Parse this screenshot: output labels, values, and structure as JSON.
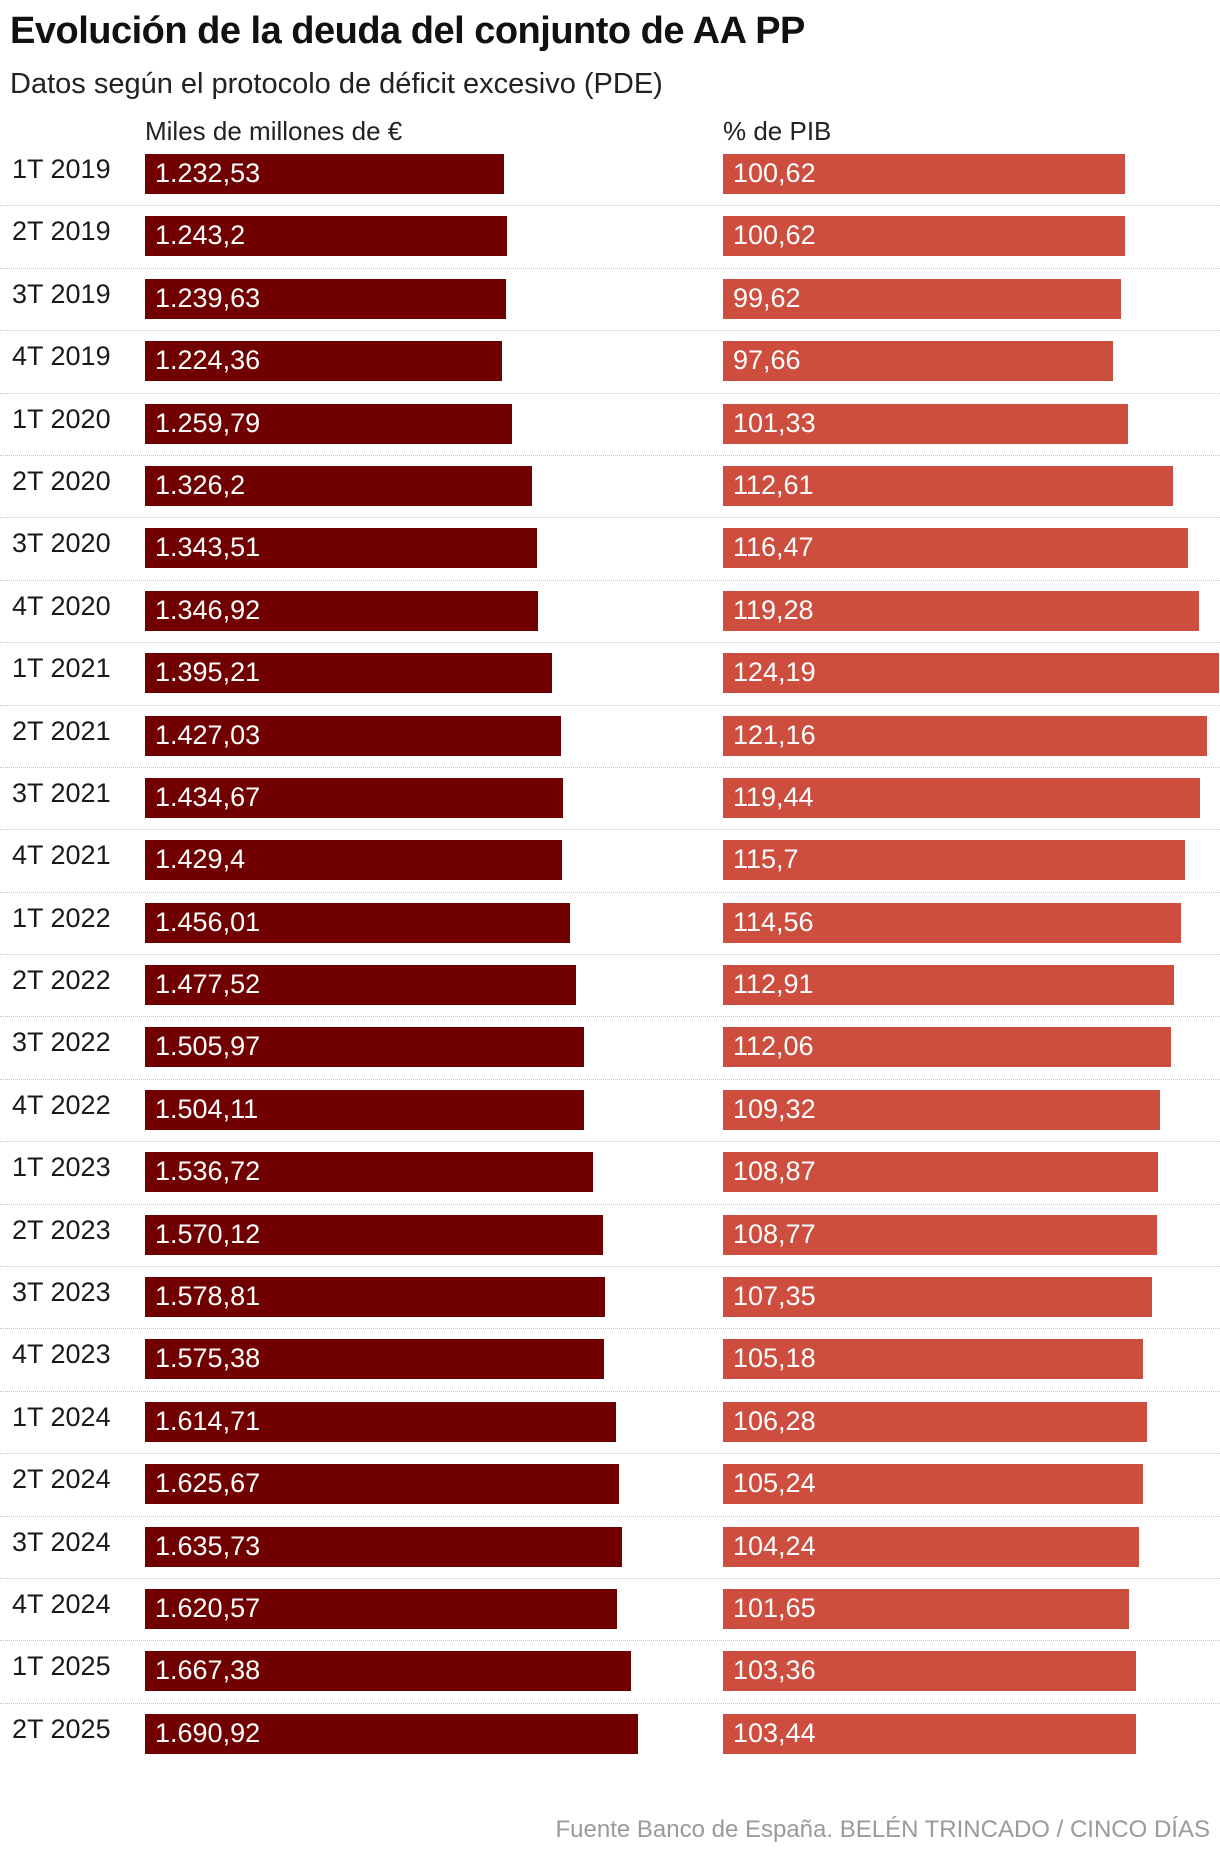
{
  "chart_data": {
    "type": "bar",
    "orientation": "horizontal",
    "title": "Evolución de la deuda del conjunto de AA PP",
    "subtitle": "Datos según el protocolo de déficit excesivo (PDE)",
    "categories": [
      "1T 2019",
      "2T 2019",
      "3T 2019",
      "4T 2019",
      "1T 2020",
      "2T 2020",
      "3T 2020",
      "4T 2020",
      "1T 2021",
      "2T 2021",
      "3T 2021",
      "4T 2021",
      "1T 2022",
      "2T 2022",
      "3T 2022",
      "4T 2022",
      "1T 2023",
      "2T 2023",
      "3T 2023",
      "4T 2023",
      "1T 2024",
      "2T 2024",
      "3T 2024",
      "4T 2024",
      "1T 2025",
      "2T 2025"
    ],
    "series": [
      {
        "name": "Miles de millones de €",
        "color": "#710000",
        "values": [
          1232.53,
          1243.2,
          1239.63,
          1224.36,
          1259.79,
          1326.2,
          1343.51,
          1346.92,
          1395.21,
          1427.03,
          1434.67,
          1429.4,
          1456.01,
          1477.52,
          1505.97,
          1504.11,
          1536.72,
          1570.12,
          1578.81,
          1575.38,
          1614.71,
          1625.67,
          1635.73,
          1620.57,
          1667.38,
          1690.92
        ],
        "labels": [
          "1.232,53",
          "1.243,2",
          "1.239,63",
          "1.224,36",
          "1.259,79",
          "1.326,2",
          "1.343,51",
          "1.346,92",
          "1.395,21",
          "1.427,03",
          "1.434,67",
          "1.429,4",
          "1.456,01",
          "1.477,52",
          "1.505,97",
          "1.504,11",
          "1.536,72",
          "1.570,12",
          "1.578,81",
          "1.575,38",
          "1.614,71",
          "1.625,67",
          "1.635,73",
          "1.620,57",
          "1.667,38",
          "1.690,92"
        ]
      },
      {
        "name": "% de PIB",
        "color": "#cd4e3e",
        "values": [
          100.62,
          100.62,
          99.62,
          97.66,
          101.33,
          112.61,
          116.47,
          119.28,
          124.19,
          121.16,
          119.44,
          115.7,
          114.56,
          112.91,
          112.06,
          109.32,
          108.87,
          108.77,
          107.35,
          105.18,
          106.28,
          105.24,
          104.24,
          101.65,
          103.36,
          103.44
        ],
        "labels": [
          "100,62",
          "100,62",
          "99,62",
          "97,66",
          "101,33",
          "112,61",
          "116,47",
          "119,28",
          "124,19",
          "121,16",
          "119,44",
          "115,7",
          "114,56",
          "112,91",
          "112,06",
          "109,32",
          "108,87",
          "108,77",
          "107,35",
          "105,18",
          "106,28",
          "105,24",
          "104,24",
          "101,65",
          "103,36",
          "103,44"
        ]
      }
    ],
    "xlim_series1": [
      0,
      1690.92
    ],
    "xlim_series2": [
      0,
      124.19
    ],
    "legend": "column headers"
  },
  "source": "Fuente Banco de España. BELÉN TRINCADO / CINCO DÍAS"
}
